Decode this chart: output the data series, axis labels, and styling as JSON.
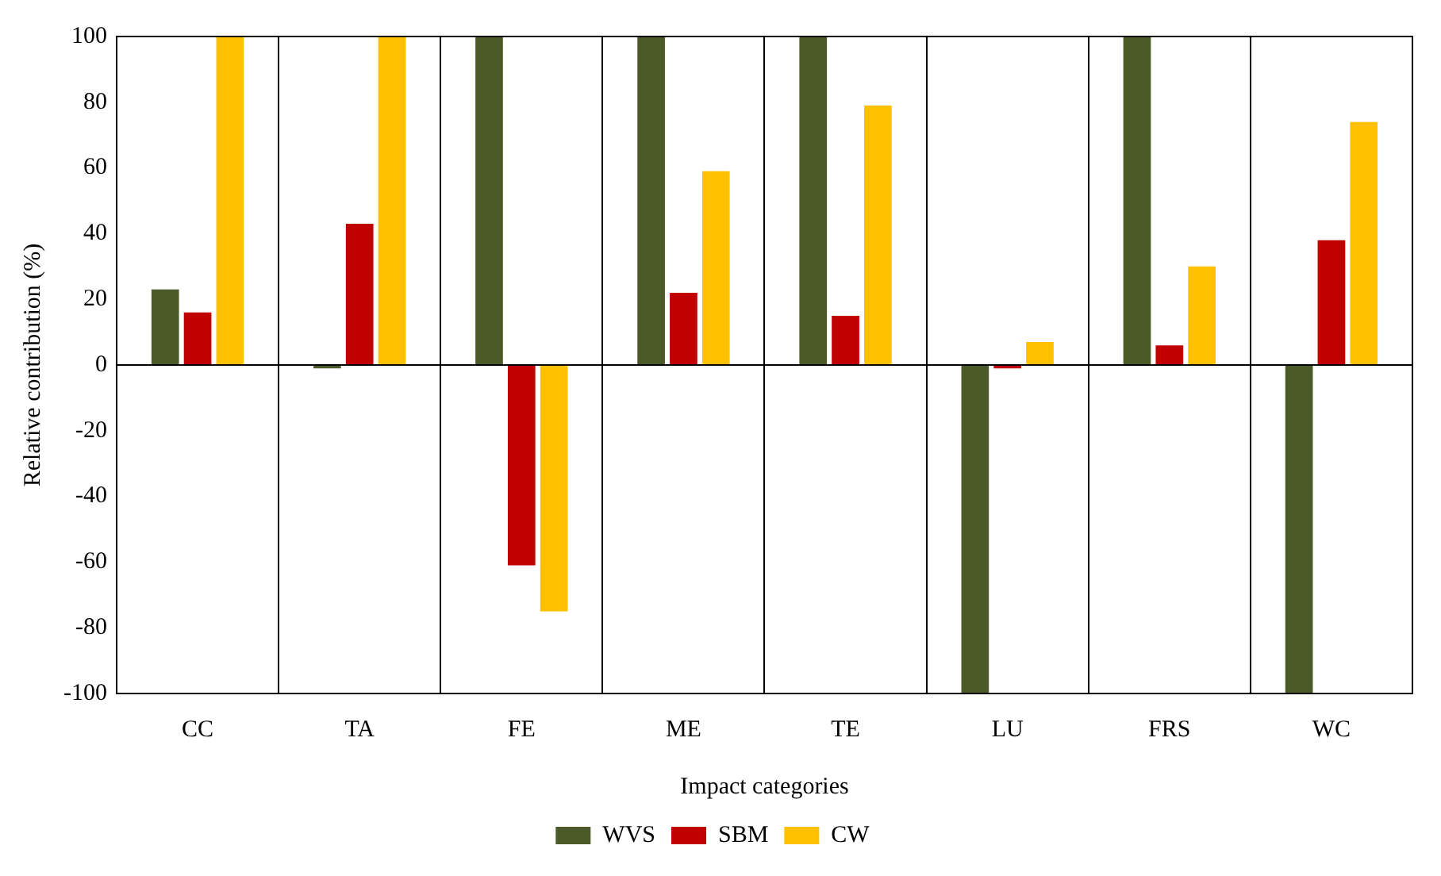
{
  "chart_data": {
    "type": "bar",
    "xlabel": "Impact categories",
    "ylabel": "Relative contribution (%)",
    "categories": [
      "CC",
      "TA",
      "FE",
      "ME",
      "TE",
      "LU",
      "FRS",
      "WC"
    ],
    "series": [
      {
        "name": "WVS",
        "color": "#4b5a28",
        "values": [
          23,
          -1,
          100,
          100,
          100,
          -100,
          100,
          -100
        ]
      },
      {
        "name": "SBM",
        "color": "#c00000",
        "values": [
          16,
          43,
          -61,
          22,
          15,
          -1,
          6,
          38
        ]
      },
      {
        "name": "CW",
        "color": "#ffc000",
        "values": [
          100,
          100,
          -75,
          59,
          79,
          7,
          30,
          74
        ]
      }
    ],
    "ylim": [
      -100,
      100
    ],
    "yticks": [
      -100,
      -80,
      -60,
      -40,
      -20,
      0,
      20,
      40,
      60,
      80,
      100
    ],
    "ref_lines": [
      {
        "axis": "y",
        "value": 0,
        "color": "#000000"
      }
    ],
    "grid": "x",
    "legend": "bottom"
  }
}
